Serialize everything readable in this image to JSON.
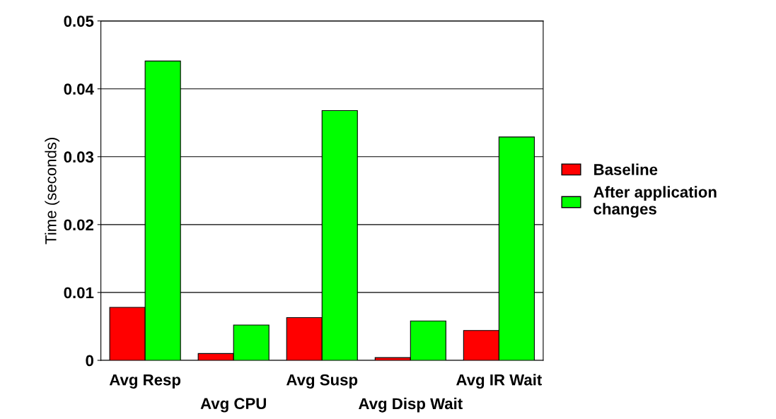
{
  "chart_data": {
    "type": "bar",
    "ylabel": "Time (seconds)",
    "categories": [
      "Avg Resp",
      "Avg CPU",
      "Avg Susp",
      "Avg Disp Wait",
      "Avg IR Wait"
    ],
    "series": [
      {
        "name": "Baseline",
        "color": "#ff0000",
        "values": [
          0.0078,
          0.001,
          0.0063,
          0.0004,
          0.0044
        ]
      },
      {
        "name": "After application changes",
        "color": "#00ff00",
        "values": [
          0.0441,
          0.0052,
          0.0368,
          0.0058,
          0.0329
        ]
      }
    ],
    "ylim": [
      0,
      0.05
    ],
    "yticks": [
      0,
      0.01,
      0.02,
      0.03,
      0.04,
      0.05
    ],
    "grid": "y",
    "legend": "right"
  }
}
